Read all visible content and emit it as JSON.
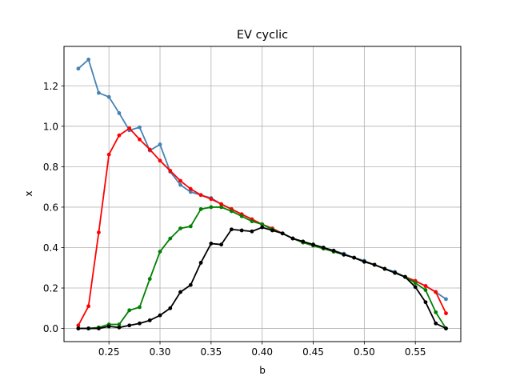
{
  "chart_data": {
    "type": "line",
    "title": "EV cyclic",
    "xlabel": "b",
    "ylabel": "x",
    "xlim": [
      0.206,
      0.5945
    ],
    "ylim": [
      -0.065,
      1.395
    ],
    "grid": true,
    "xticks": [
      0.25,
      0.3,
      0.35,
      0.4,
      0.45,
      0.5,
      0.55
    ],
    "xtick_labels": [
      "0.25",
      "0.30",
      "0.35",
      "0.40",
      "0.45",
      "0.50",
      "0.55"
    ],
    "yticks": [
      0.0,
      0.2,
      0.4,
      0.6,
      0.8,
      1.0,
      1.2
    ],
    "ytick_labels": [
      "0.0",
      "0.2",
      "0.4",
      "0.6",
      "0.8",
      "1.0",
      "1.2"
    ],
    "x": [
      0.22,
      0.23,
      0.24,
      0.25,
      0.26,
      0.27,
      0.28,
      0.29,
      0.3,
      0.31,
      0.32,
      0.33,
      0.34,
      0.35,
      0.36,
      0.37,
      0.38,
      0.39,
      0.4,
      0.41,
      0.42,
      0.43,
      0.44,
      0.45,
      0.46,
      0.47,
      0.48,
      0.49,
      0.5,
      0.51,
      0.52,
      0.53,
      0.54,
      0.55,
      0.56,
      0.57,
      0.58
    ],
    "series": [
      {
        "color": "#4682b4",
        "values": [
          1.285,
          1.33,
          1.165,
          1.145,
          1.065,
          0.98,
          0.995,
          0.88,
          0.91,
          0.775,
          0.71,
          0.675,
          0.66,
          0.645,
          0.615,
          0.59,
          0.565,
          0.54,
          0.515,
          0.49,
          0.47,
          0.445,
          0.43,
          0.415,
          0.4,
          0.385,
          0.37,
          0.35,
          0.335,
          0.315,
          0.295,
          0.28,
          0.255,
          0.235,
          0.21,
          0.18,
          0.145
        ]
      },
      {
        "color": "#ff0000",
        "values": [
          0.015,
          0.11,
          0.475,
          0.86,
          0.955,
          0.99,
          0.935,
          0.885,
          0.83,
          0.78,
          0.73,
          0.69,
          0.66,
          0.64,
          0.615,
          0.59,
          0.565,
          0.54,
          0.515,
          0.495,
          0.47,
          0.445,
          0.425,
          0.41,
          0.395,
          0.38,
          0.365,
          0.35,
          0.33,
          0.315,
          0.295,
          0.275,
          0.255,
          0.235,
          0.21,
          0.18,
          0.075
        ]
      },
      {
        "color": "#008000",
        "values": [
          0.0,
          0.0,
          0.005,
          0.02,
          0.02,
          0.09,
          0.105,
          0.245,
          0.38,
          0.445,
          0.495,
          0.505,
          0.59,
          0.6,
          0.6,
          0.58,
          0.555,
          0.53,
          0.515,
          0.49,
          0.47,
          0.445,
          0.425,
          0.41,
          0.395,
          0.38,
          0.365,
          0.35,
          0.33,
          0.315,
          0.295,
          0.275,
          0.255,
          0.225,
          0.19,
          0.08,
          0.0
        ]
      },
      {
        "color": "#000000",
        "values": [
          0.0,
          0.0,
          0.0,
          0.01,
          0.005,
          0.015,
          0.025,
          0.04,
          0.065,
          0.1,
          0.18,
          0.215,
          0.325,
          0.42,
          0.415,
          0.49,
          0.485,
          0.48,
          0.5,
          0.485,
          0.47,
          0.445,
          0.43,
          0.415,
          0.4,
          0.385,
          0.365,
          0.35,
          0.33,
          0.315,
          0.295,
          0.275,
          0.255,
          0.205,
          0.13,
          0.025,
          0.0
        ]
      }
    ]
  }
}
